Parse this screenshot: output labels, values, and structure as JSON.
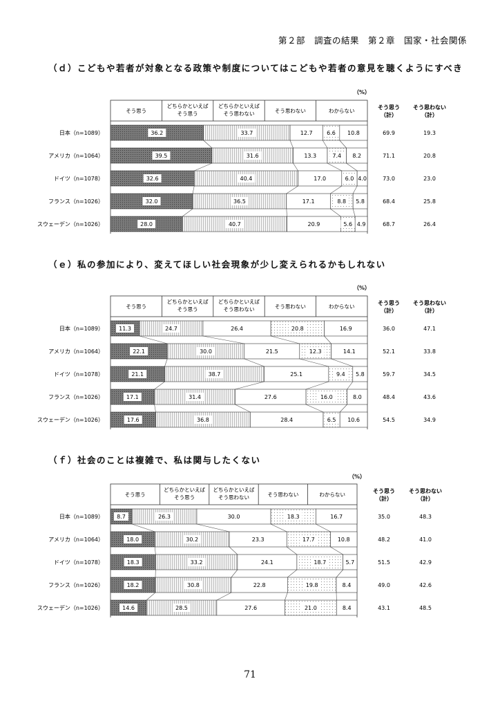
{
  "header": {
    "running_title": "第２部　調査の結果　第２章　国家・社会関係"
  },
  "footer": {
    "page_number": "71"
  },
  "colors": {
    "sou_omou": "#8a8a8a",
    "dochira_sou": "#e4e4e4",
    "dochira_not": "#ffffff",
    "not": "#f3f3f3",
    "wakaranai": "#ffffff",
    "outline": "#333333"
  },
  "chart_data": [
    {
      "type": "bar",
      "subtype": "stacked-100-horizontal",
      "title": "（ｄ）こどもや若者が対象となる政策や制度についてはこどもや若者の意見を聴くようにすべき",
      "unit_label": "（%）",
      "legend": [
        "そう思う",
        "どちらかといえば\nそう思う",
        "どちらかといえば\nそう思わない",
        "そう思わない",
        "わからない"
      ],
      "summary_headers": [
        "そう思う\n（計）",
        "そう思わない\n（計）"
      ],
      "categories": [
        "日本（n=1089）",
        "アメリカ（n=1064）",
        "ドイツ（n=1078）",
        "フランス（n=1026）",
        "スウェーデン（n=1026）"
      ],
      "series": [
        {
          "name": "そう思う",
          "values": [
            36.2,
            39.5,
            32.6,
            32.0,
            28.0
          ]
        },
        {
          "name": "どちらかといえば そう思う",
          "values": [
            33.7,
            31.6,
            40.4,
            36.5,
            40.7
          ]
        },
        {
          "name": "どちらかといえば そう思わない",
          "values": [
            12.7,
            13.3,
            17.0,
            17.1,
            20.9
          ]
        },
        {
          "name": "そう思わない",
          "values": [
            6.6,
            7.4,
            6.0,
            8.8,
            5.6
          ]
        },
        {
          "name": "わからない",
          "values": [
            10.8,
            8.2,
            4.0,
            5.8,
            4.9
          ]
        }
      ],
      "summary": {
        "sou_omou_total": [
          69.9,
          71.1,
          73.0,
          68.4,
          68.7
        ],
        "sou_omowanai_total": [
          19.3,
          20.8,
          23.0,
          25.8,
          26.4
        ]
      }
    },
    {
      "type": "bar",
      "subtype": "stacked-100-horizontal",
      "title": "（ｅ）私の参加により、変えてほしい社会現象が少し変えられるかもしれない",
      "unit_label": "（%）",
      "legend": [
        "そう思う",
        "どちらかといえば\nそう思う",
        "どちらかといえば\nそう思わない",
        "そう思わない",
        "わからない"
      ],
      "summary_headers": [
        "そう思う\n（計）",
        "そう思わない\n（計）"
      ],
      "categories": [
        "日本（n=1089）",
        "アメリカ（n=1064）",
        "ドイツ（n=1078）",
        "フランス（n=1026）",
        "スウェーデン（n=1026）"
      ],
      "series": [
        {
          "name": "そう思う",
          "values": [
            11.3,
            22.1,
            21.1,
            17.1,
            17.6
          ]
        },
        {
          "name": "どちらかといえば そう思う",
          "values": [
            24.7,
            30.0,
            38.7,
            31.4,
            36.8
          ]
        },
        {
          "name": "どちらかといえば そう思わない",
          "values": [
            26.4,
            21.5,
            25.1,
            27.6,
            28.4
          ]
        },
        {
          "name": "そう思わない",
          "values": [
            20.8,
            12.3,
            9.4,
            16.0,
            6.5
          ]
        },
        {
          "name": "わからない",
          "values": [
            16.9,
            14.1,
            5.8,
            8.0,
            10.6
          ]
        }
      ],
      "summary": {
        "sou_omou_total": [
          36.0,
          52.1,
          59.7,
          48.4,
          54.5
        ],
        "sou_omowanai_total": [
          47.1,
          33.8,
          34.5,
          43.6,
          34.9
        ]
      }
    },
    {
      "type": "bar",
      "subtype": "stacked-100-horizontal",
      "title": "（ｆ）社会のことは複雑で、私は関与したくない",
      "unit_label": "（%）",
      "legend": [
        "そう思う",
        "どちらかといえば\nそう思う",
        "どちらかといえば\nそう思わない",
        "そう思わない",
        "わからない"
      ],
      "summary_headers": [
        "そう思う\n（計）",
        "そう思わない\n（計）"
      ],
      "categories": [
        "日本（n=1089）",
        "アメリカ（n=1064）",
        "ドイツ（n=1078）",
        "フランス（n=1026）",
        "スウェーデン（n=1026）"
      ],
      "series": [
        {
          "name": "そう思う",
          "values": [
            8.7,
            18.0,
            18.3,
            18.2,
            14.6
          ]
        },
        {
          "name": "どちらかといえば そう思う",
          "values": [
            26.3,
            30.2,
            33.2,
            30.8,
            28.5
          ]
        },
        {
          "name": "どちらかといえば そう思わない",
          "values": [
            30.0,
            23.3,
            24.1,
            22.8,
            27.6
          ]
        },
        {
          "name": "そう思わない",
          "values": [
            18.3,
            17.7,
            18.7,
            19.8,
            21.0
          ]
        },
        {
          "name": "わからない",
          "values": [
            16.7,
            10.8,
            5.7,
            8.4,
            8.4
          ]
        }
      ],
      "summary": {
        "sou_omou_total": [
          35.0,
          48.2,
          51.5,
          49.0,
          43.1
        ],
        "sou_omowanai_total": [
          48.3,
          41.0,
          42.9,
          42.6,
          48.5
        ]
      }
    }
  ]
}
